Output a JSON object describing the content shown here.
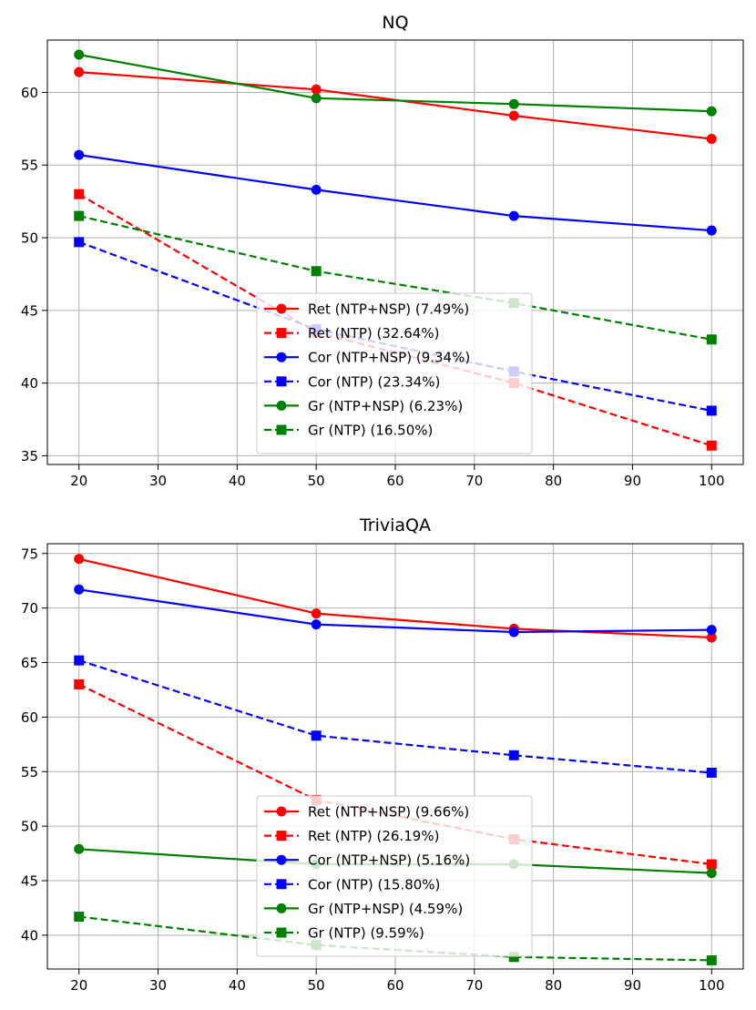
{
  "chart_data": [
    {
      "type": "line",
      "title": "NQ",
      "xlabel": "",
      "ylabel": "",
      "x": [
        20,
        50,
        75,
        100
      ],
      "xlim": [
        16,
        104
      ],
      "ylim": [
        34.4,
        63.6
      ],
      "xticks": [
        20,
        30,
        40,
        50,
        60,
        70,
        80,
        90,
        100
      ],
      "yticks": [
        35,
        40,
        45,
        50,
        55,
        60
      ],
      "grid": true,
      "legend_position": "lower-center",
      "series": [
        {
          "name": "Ret (NTP+NSP) (7.49%)",
          "color": "#ff0000",
          "style": "solid",
          "marker": "circle",
          "values": [
            61.4,
            60.2,
            58.4,
            56.8
          ]
        },
        {
          "name": "Ret (NTP) (32.64%)",
          "color": "#ff0000",
          "style": "dashed",
          "marker": "square",
          "values": [
            53.0,
            43.5,
            40.0,
            35.7
          ]
        },
        {
          "name": "Cor (NTP+NSP) (9.34%)",
          "color": "#0000ff",
          "style": "solid",
          "marker": "circle",
          "values": [
            55.7,
            53.3,
            51.5,
            50.5
          ]
        },
        {
          "name": "Cor (NTP) (23.34%)",
          "color": "#0000ff",
          "style": "dashed",
          "marker": "square",
          "values": [
            49.7,
            43.7,
            40.8,
            38.1
          ]
        },
        {
          "name": "Gr (NTP+NSP) (6.23%)",
          "color": "#008000",
          "style": "solid",
          "marker": "circle",
          "values": [
            62.6,
            59.6,
            59.2,
            58.7
          ]
        },
        {
          "name": "Gr (NTP) (16.50%)",
          "color": "#008000",
          "style": "dashed",
          "marker": "square",
          "values": [
            51.5,
            47.7,
            45.5,
            43.0
          ]
        }
      ]
    },
    {
      "type": "line",
      "title": "TriviaQA",
      "xlabel": "",
      "ylabel": "",
      "x": [
        20,
        50,
        75,
        100
      ],
      "xlim": [
        16,
        104
      ],
      "ylim": [
        36.9,
        75.9
      ],
      "xticks": [
        20,
        30,
        40,
        50,
        60,
        70,
        80,
        90,
        100
      ],
      "yticks": [
        40,
        45,
        50,
        55,
        60,
        65,
        70,
        75
      ],
      "grid": true,
      "legend_position": "lower-center",
      "series": [
        {
          "name": "Ret (NTP+NSP) (9.66%)",
          "color": "#ff0000",
          "style": "solid",
          "marker": "circle",
          "values": [
            74.5,
            69.5,
            68.1,
            67.3
          ]
        },
        {
          "name": "Ret (NTP) (26.19%)",
          "color": "#ff0000",
          "style": "dashed",
          "marker": "square",
          "values": [
            63.0,
            52.4,
            48.8,
            46.5
          ]
        },
        {
          "name": "Cor (NTP+NSP) (5.16%)",
          "color": "#0000ff",
          "style": "solid",
          "marker": "circle",
          "values": [
            71.7,
            68.5,
            67.8,
            68.0
          ]
        },
        {
          "name": "Cor (NTP) (15.80%)",
          "color": "#0000ff",
          "style": "dashed",
          "marker": "square",
          "values": [
            65.2,
            58.3,
            56.5,
            54.9
          ]
        },
        {
          "name": "Gr (NTP+NSP) (4.59%)",
          "color": "#008000",
          "style": "solid",
          "marker": "circle",
          "values": [
            47.9,
            46.5,
            46.5,
            45.7
          ]
        },
        {
          "name": "Gr (NTP) (9.59%)",
          "color": "#008000",
          "style": "dashed",
          "marker": "square",
          "values": [
            41.7,
            39.1,
            38.0,
            37.7
          ]
        }
      ]
    }
  ]
}
